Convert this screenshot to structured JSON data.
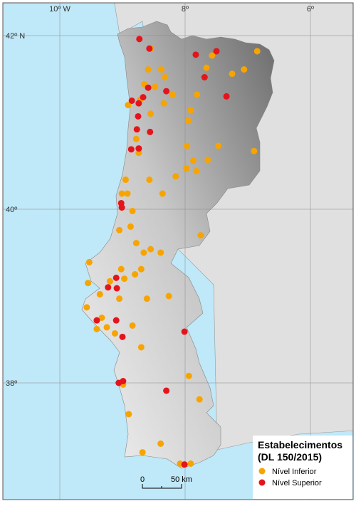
{
  "graticule": {
    "longitudes": [
      {
        "value": -10,
        "label": "10º W"
      },
      {
        "value": -8,
        "label": "8º"
      },
      {
        "value": -6,
        "label": "6º"
      }
    ],
    "latitudes": [
      {
        "value": 42,
        "label": "42º N"
      },
      {
        "value": 40,
        "label": "40º"
      },
      {
        "value": 38,
        "label": "38º"
      }
    ]
  },
  "legend": {
    "title": "Estabelecimentos",
    "subtitle": "(DL 150/2015)",
    "items": [
      {
        "label": "Nível Inferior",
        "color": "#f7a400"
      },
      {
        "label": "Nível Superior",
        "color": "#e5141b"
      }
    ]
  },
  "scale_bar": {
    "start": "0",
    "end": "50 km"
  },
  "points": {
    "inferior": [
      [
        -8.55,
        41.85
      ],
      [
        -8.38,
        41.61
      ],
      [
        -8.32,
        41.52
      ],
      [
        -8.59,
        41.61
      ],
      [
        -8.65,
        41.44
      ],
      [
        -8.72,
        41.26
      ],
      [
        -8.48,
        41.41
      ],
      [
        -8.34,
        41.22
      ],
      [
        -8.55,
        41.1
      ],
      [
        -8.2,
        41.32
      ],
      [
        -7.81,
        41.32
      ],
      [
        -7.91,
        41.14
      ],
      [
        -7.95,
        41.02
      ],
      [
        -7.66,
        41.63
      ],
      [
        -7.57,
        41.77
      ],
      [
        -7.25,
        41.56
      ],
      [
        -7.06,
        41.61
      ],
      [
        -6.85,
        41.82
      ],
      [
        -7.47,
        40.73
      ],
      [
        -7.97,
        40.73
      ],
      [
        -7.87,
        40.56
      ],
      [
        -7.98,
        40.47
      ],
      [
        -7.82,
        40.44
      ],
      [
        -7.64,
        40.57
      ],
      [
        -8.15,
        40.38
      ],
      [
        -6.9,
        40.67
      ],
      [
        -8.74,
        40.65
      ],
      [
        -8.78,
        40.81
      ],
      [
        -8.95,
        40.34
      ],
      [
        -9.01,
        40.18
      ],
      [
        -8.92,
        40.18
      ],
      [
        -8.36,
        40.18
      ],
      [
        -8.57,
        40.34
      ],
      [
        -8.84,
        39.98
      ],
      [
        -8.87,
        39.8
      ],
      [
        -9.05,
        39.76
      ],
      [
        -8.78,
        39.61
      ],
      [
        -8.66,
        39.5
      ],
      [
        -8.55,
        39.54
      ],
      [
        -8.39,
        39.5
      ],
      [
        -8.8,
        39.25
      ],
      [
        -9.02,
        39.31
      ],
      [
        -9.53,
        39.39
      ],
      [
        -9.55,
        39.15
      ],
      [
        -9.2,
        39.17
      ],
      [
        -8.97,
        39.2
      ],
      [
        -8.7,
        39.31
      ],
      [
        -8.61,
        38.97
      ],
      [
        -8.26,
        39.0
      ],
      [
        -9.05,
        38.97
      ],
      [
        -9.36,
        39.02
      ],
      [
        -9.57,
        38.87
      ],
      [
        -9.33,
        38.75
      ],
      [
        -9.25,
        38.64
      ],
      [
        -9.12,
        38.57
      ],
      [
        -9.41,
        38.62
      ],
      [
        -8.84,
        38.66
      ],
      [
        -8.7,
        38.41
      ],
      [
        -7.94,
        38.08
      ],
      [
        -8.99,
        37.98
      ],
      [
        -7.77,
        37.81
      ],
      [
        -8.9,
        37.64
      ],
      [
        -8.68,
        37.2
      ],
      [
        -8.39,
        37.3
      ],
      [
        -8.08,
        37.07
      ],
      [
        -7.91,
        37.07
      ],
      [
        -7.75,
        39.7
      ],
      [
        -8.91,
        41.2
      ]
    ],
    "superior": [
      [
        -8.73,
        41.96
      ],
      [
        -8.57,
        41.85
      ],
      [
        -7.83,
        41.78
      ],
      [
        -7.5,
        41.82
      ],
      [
        -7.69,
        41.52
      ],
      [
        -7.34,
        41.3
      ],
      [
        -8.3,
        41.36
      ],
      [
        -8.59,
        41.4
      ],
      [
        -8.85,
        41.25
      ],
      [
        -8.74,
        41.22
      ],
      [
        -8.67,
        41.29
      ],
      [
        -8.77,
        40.92
      ],
      [
        -8.56,
        40.89
      ],
      [
        -8.86,
        40.69
      ],
      [
        -8.74,
        40.7
      ],
      [
        -8.75,
        41.07
      ],
      [
        -9.02,
        40.07
      ],
      [
        -9.01,
        40.02
      ],
      [
        -9.1,
        39.21
      ],
      [
        -9.09,
        39.09
      ],
      [
        -9.23,
        39.1
      ],
      [
        -9.41,
        38.72
      ],
      [
        -9.1,
        38.72
      ],
      [
        -9.0,
        38.53
      ],
      [
        -8.01,
        38.59
      ],
      [
        -9.06,
        38.0
      ],
      [
        -8.99,
        38.02
      ],
      [
        -8.3,
        37.91
      ],
      [
        -8.01,
        37.06
      ]
    ]
  }
}
